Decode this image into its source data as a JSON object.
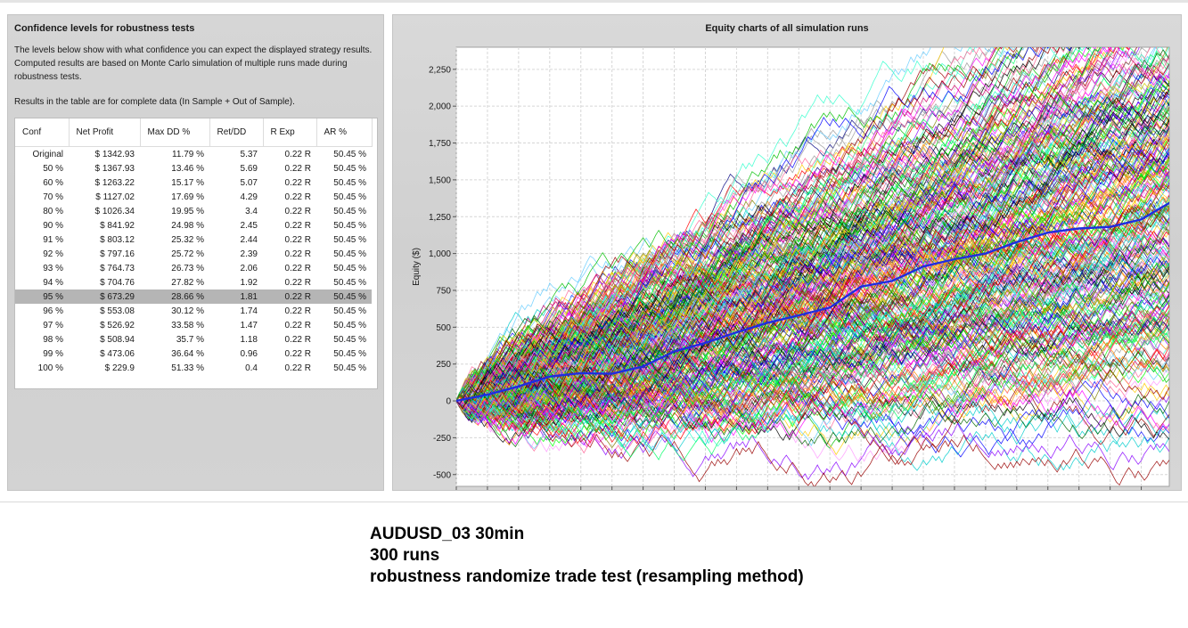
{
  "left": {
    "title": "Confidence levels for robustness tests",
    "description": "The levels below show with what confidence you can expect the displayed strategy results. Computed results are based on Monte Carlo simulation of multiple runs made during robustness tests.",
    "note": "Results in the table are for complete data (In Sample + Out of Sample).",
    "columns": [
      "Conf",
      "Net Profit",
      "Max DD %",
      "Ret/DD",
      "R Exp",
      "AR %"
    ],
    "selected_row": 10,
    "rows": [
      [
        "Original",
        "$ 1342.93",
        "11.79 %",
        "5.37",
        "0.22 R",
        "50.45 %"
      ],
      [
        "50 %",
        "$ 1367.93",
        "13.46 %",
        "5.69",
        "0.22 R",
        "50.45 %"
      ],
      [
        "60 %",
        "$ 1263.22",
        "15.17 %",
        "5.07",
        "0.22 R",
        "50.45 %"
      ],
      [
        "70 %",
        "$ 1127.02",
        "17.69 %",
        "4.29",
        "0.22 R",
        "50.45 %"
      ],
      [
        "80 %",
        "$ 1026.34",
        "19.95 %",
        "3.4",
        "0.22 R",
        "50.45 %"
      ],
      [
        "90 %",
        "$ 841.92",
        "24.98 %",
        "2.45",
        "0.22 R",
        "50.45 %"
      ],
      [
        "91 %",
        "$ 803.12",
        "25.32 %",
        "2.44",
        "0.22 R",
        "50.45 %"
      ],
      [
        "92 %",
        "$ 797.16",
        "25.72 %",
        "2.39",
        "0.22 R",
        "50.45 %"
      ],
      [
        "93 %",
        "$ 764.73",
        "26.73 %",
        "2.06",
        "0.22 R",
        "50.45 %"
      ],
      [
        "94 %",
        "$ 704.76",
        "27.82 %",
        "1.92",
        "0.22 R",
        "50.45 %"
      ],
      [
        "95 %",
        "$ 673.29",
        "28.66 %",
        "1.81",
        "0.22 R",
        "50.45 %"
      ],
      [
        "96 %",
        "$ 553.08",
        "30.12 %",
        "1.74",
        "0.22 R",
        "50.45 %"
      ],
      [
        "97 %",
        "$ 526.92",
        "33.58 %",
        "1.47",
        "0.22 R",
        "50.45 %"
      ],
      [
        "98 %",
        "$ 508.94",
        "35.7 %",
        "1.18",
        "0.22 R",
        "50.45 %"
      ],
      [
        "99 %",
        "$ 473.06",
        "36.64 %",
        "0.96",
        "0.22 R",
        "50.45 %"
      ],
      [
        "100 %",
        "$ 229.9",
        "51.33 %",
        "0.4",
        "0.22 R",
        "50.45 %"
      ]
    ]
  },
  "chart_data": {
    "type": "line",
    "title": "Equity charts of all simulation runs",
    "xlabel": "",
    "ylabel": "Equity ($)",
    "xlim": [
      0,
      229
    ],
    "ylim": [
      -580,
      2400
    ],
    "xticks": [
      0,
      10,
      20,
      30,
      40,
      50,
      60,
      70,
      80,
      90,
      100,
      110,
      120,
      130,
      140,
      150,
      160,
      170,
      180,
      190,
      200,
      210,
      220
    ],
    "yticks": [
      -500,
      -250,
      0,
      250,
      500,
      750,
      1000,
      1250,
      1500,
      1750,
      2000,
      2250
    ],
    "ytick_labels": [
      "-500",
      "-250",
      "0",
      "250",
      "500",
      "750",
      "1,000",
      "1,250",
      "1,500",
      "1,750",
      "2,000",
      "2,250"
    ],
    "grid": true,
    "legend": "none",
    "runs": 300,
    "final_range": [
      200,
      2300
    ],
    "highlighted_series": {
      "color": "#1e2de0",
      "x": [
        0,
        10,
        20,
        30,
        40,
        50,
        60,
        70,
        80,
        90,
        100,
        110,
        120,
        130,
        140,
        150,
        160,
        170,
        180,
        190,
        200,
        210,
        220,
        229
      ],
      "y": [
        0,
        40,
        110,
        170,
        180,
        200,
        240,
        320,
        380,
        450,
        530,
        600,
        650,
        760,
        800,
        900,
        960,
        1000,
        1060,
        1130,
        1170,
        1200,
        1250,
        1342.93
      ]
    },
    "palette": [
      "#ff0000",
      "#00c000",
      "#0000ff",
      "#ff00ff",
      "#00cccc",
      "#ffcc00",
      "#ff8800",
      "#8800ff",
      "#00ff66",
      "#ff6699",
      "#006600",
      "#990000",
      "#000080",
      "#808000",
      "#ff99ff",
      "#66ccff",
      "#999999",
      "#cccc00",
      "#00ff00",
      "#cc0066",
      "#33ffcc",
      "#000000"
    ]
  },
  "caption": {
    "line1": "AUDUSD_03 30min",
    "line2": "300 runs",
    "line3": "robustness randomize trade test (resampling method)"
  }
}
